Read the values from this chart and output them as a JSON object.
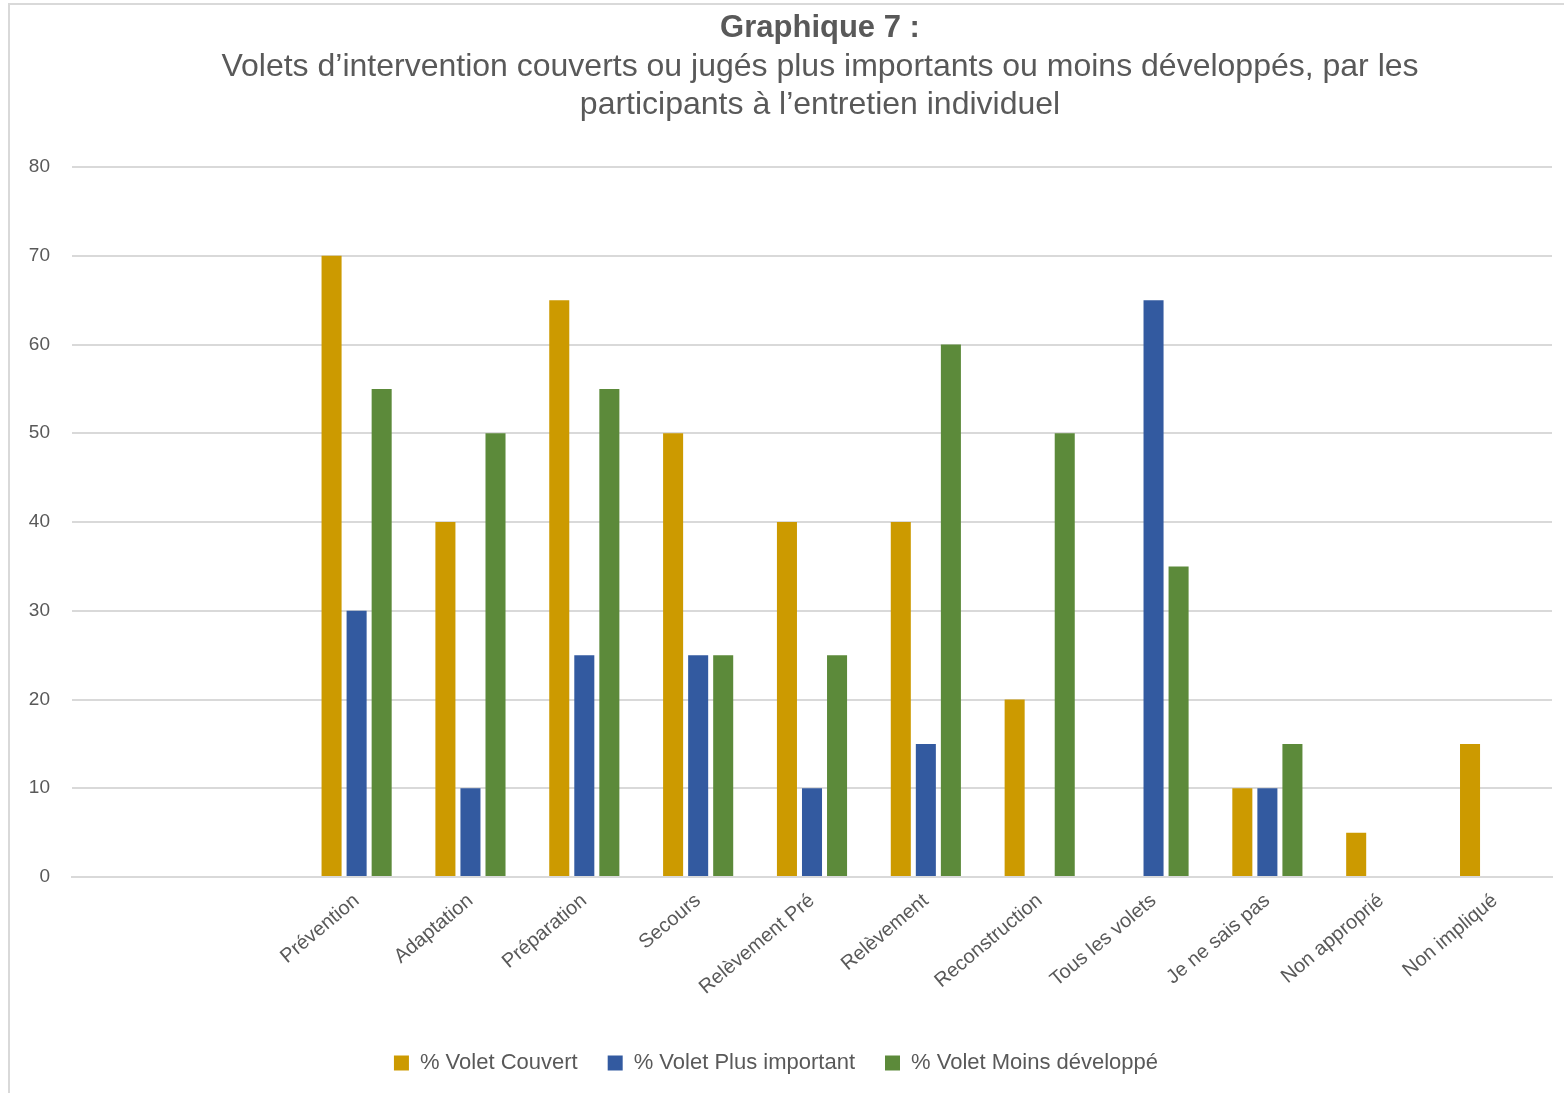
{
  "chart_data": {
    "type": "bar",
    "title": "Graphique 7 :",
    "subtitle": "Volets d’intervention couverts ou jugés plus importants ou moins développés, par les participants à l’entretien individuel",
    "categories": [
      null,
      null,
      "Prévention",
      "Adaptation",
      "Préparation",
      "Secours",
      "Relèvement Pré",
      "Relèvement",
      "Reconstruction",
      "Tous les volets",
      "Je ne sais pas",
      "Non approprié",
      "Non impliqué"
    ],
    "series": [
      {
        "name": "% Volet Couvert",
        "color": "#cc9a00",
        "values": [
          null,
          null,
          70,
          40,
          65,
          50,
          40,
          40,
          20,
          null,
          10,
          5,
          15
        ]
      },
      {
        "name": "% Volet Plus important",
        "color": "#335aa0",
        "values": [
          null,
          null,
          30,
          10,
          25,
          25,
          10,
          15,
          null,
          65,
          10,
          null,
          null
        ]
      },
      {
        "name": "% Volet Moins développé",
        "color": "#5c8a3a",
        "values": [
          null,
          null,
          55,
          50,
          55,
          25,
          25,
          60,
          50,
          35,
          15,
          null,
          null
        ]
      }
    ],
    "ylim": [
      0,
      80
    ],
    "yticks": [
      0,
      10,
      20,
      30,
      40,
      50,
      60,
      70,
      80
    ],
    "grid": "y",
    "legend": "bottom"
  }
}
